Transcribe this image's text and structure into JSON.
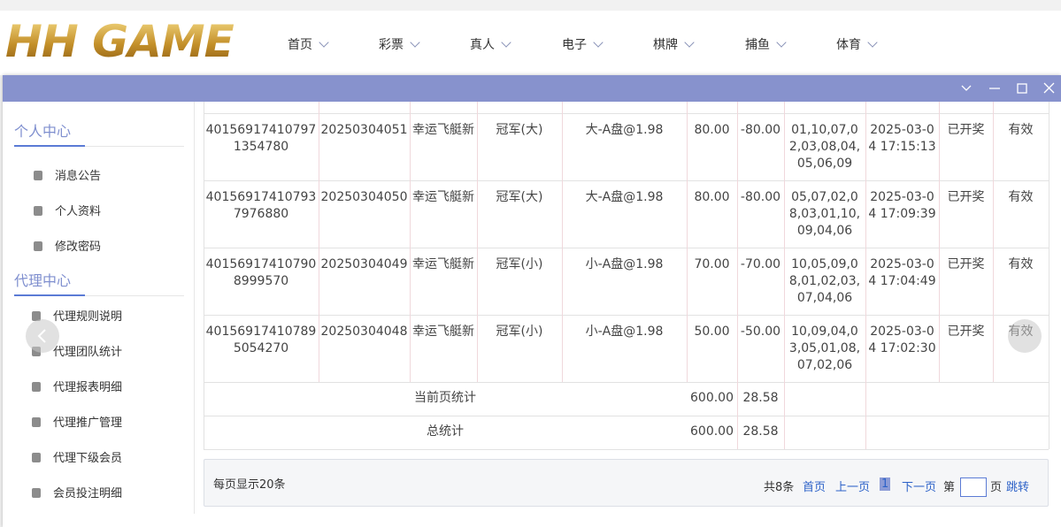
{
  "header": {
    "logo": "HH GAME",
    "nav": [
      "首页",
      "彩票",
      "真人",
      "电子",
      "棋牌",
      "捕鱼",
      "体育"
    ]
  },
  "sidebar": {
    "sections": [
      {
        "title": "个人中心",
        "items": [
          "消息公告",
          "个人资料",
          "修改密码"
        ]
      },
      {
        "title": "代理中心",
        "items": [
          "代理规则说明",
          "代理团队统计",
          "代理报表明细",
          "代理推广管理",
          "代理下级会员",
          "会员投注明细"
        ]
      }
    ]
  },
  "table": {
    "rows": [
      [
        "401569174107971354780",
        "20250304051",
        "幸运飞艇新",
        "冠军(大)",
        "大-A盘@1.98",
        "80.00",
        "-80.00",
        "01,10,07,02,03,08,04,05,06,09",
        "2025-03-04 17:15:13",
        "已开奖",
        "有效"
      ],
      [
        "401569174107937976880",
        "20250304050",
        "幸运飞艇新",
        "冠军(大)",
        "大-A盘@1.98",
        "80.00",
        "-80.00",
        "05,07,02,08,03,01,10,09,04,06",
        "2025-03-04 17:09:39",
        "已开奖",
        "有效"
      ],
      [
        "401569174107908999570",
        "20250304049",
        "幸运飞艇新",
        "冠军(小)",
        "小-A盘@1.98",
        "70.00",
        "-70.00",
        "10,05,09,08,01,02,03,07,04,06",
        "2025-03-04 17:04:49",
        "已开奖",
        "有效"
      ],
      [
        "401569174107895054270",
        "20250304048",
        "幸运飞艇新",
        "冠军(小)",
        "小-A盘@1.98",
        "50.00",
        "-50.00",
        "10,09,04,03,05,01,08,07,02,06",
        "2025-03-04 17:02:30",
        "已开奖",
        "有效"
      ]
    ],
    "summary": [
      [
        "当前页统计",
        "600.00",
        "28.58"
      ],
      [
        "总统计",
        "600.00",
        "28.58"
      ]
    ]
  },
  "pagination": {
    "page_size": "每页显示20条",
    "total": "共8条",
    "first": "首页",
    "prev": "上一页",
    "current": "1",
    "next": "下一页",
    "goto_prefix": "第",
    "goto_suffix": "页",
    "jump": "跳转"
  }
}
